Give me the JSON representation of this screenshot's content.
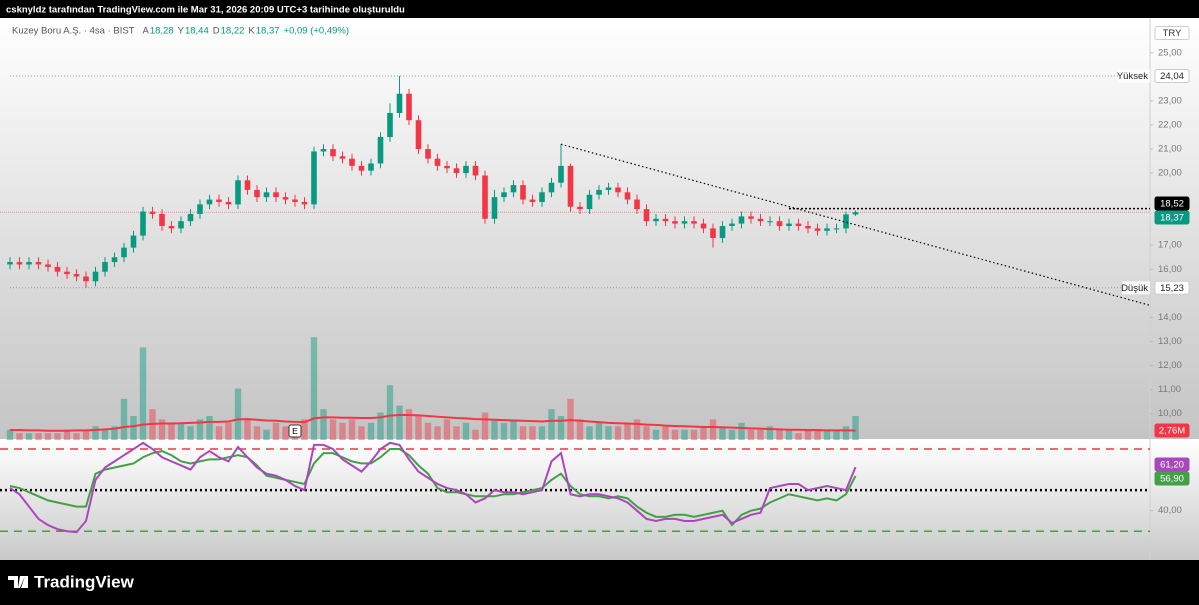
{
  "header": {
    "caption": "csknyldz tarafından TradingView.com ile Mar 31, 2026 20:09 UTC+3 tarihinde oluşturuldu"
  },
  "chart_data": {
    "type": "candlestick",
    "title": "Kuzey Boru A.Ş. · 4sa · BIST",
    "currency": "TRY",
    "ohlc_legend": [
      {
        "key": "A",
        "value": "18,28"
      },
      {
        "key": "Y",
        "value": "18,44"
      },
      {
        "key": "D",
        "value": "18,22"
      },
      {
        "key": "K",
        "value": "18,37"
      }
    ],
    "change": "+0,09 (+0,49%)",
    "colors": {
      "up": "#089981",
      "down": "#f23645"
    },
    "open": [
      16.2,
      16.3,
      16.2,
      16.3,
      16.2,
      16.1,
      15.9,
      15.8,
      15.7,
      15.5,
      15.9,
      16.3,
      16.5,
      16.9,
      17.4,
      18.4,
      18.3,
      17.8,
      17.7,
      18.0,
      18.3,
      18.7,
      18.9,
      18.8,
      18.7,
      19.7,
      19.3,
      19.0,
      19.2,
      19.0,
      18.9,
      18.8,
      18.7,
      20.9,
      21.0,
      20.7,
      20.6,
      20.3,
      20.1,
      20.4,
      21.5,
      22.5,
      23.3,
      22.2,
      21.0,
      20.6,
      20.3,
      20.2,
      20.0,
      20.3,
      19.9,
      18.1,
      19.0,
      19.2,
      19.5,
      18.9,
      18.8,
      19.2,
      19.6,
      20.3,
      18.6,
      18.5,
      19.1,
      19.3,
      19.4,
      19.2,
      18.9,
      18.5,
      18.0,
      18.1,
      18.0,
      17.9,
      18.0,
      17.9,
      17.7,
      17.3,
      17.8,
      17.9,
      18.2,
      18.1,
      18.0,
      18.0,
      17.8,
      17.9,
      17.8,
      17.7,
      17.6,
      17.7,
      17.7,
      18.28
    ],
    "high": [
      16.5,
      16.5,
      16.5,
      16.5,
      16.4,
      16.3,
      16.1,
      16.0,
      15.9,
      16.1,
      16.5,
      16.7,
      17.1,
      17.6,
      18.6,
      18.6,
      18.5,
      18.0,
      18.2,
      18.5,
      18.9,
      19.1,
      19.1,
      19.0,
      19.9,
      19.9,
      19.5,
      19.4,
      19.4,
      19.2,
      19.1,
      19.0,
      21.1,
      21.2,
      21.2,
      20.9,
      20.8,
      20.5,
      20.6,
      21.7,
      22.9,
      24.04,
      23.5,
      22.4,
      21.2,
      20.8,
      20.5,
      20.4,
      20.5,
      20.5,
      20.1,
      19.3,
      19.4,
      19.7,
      19.7,
      19.1,
      19.4,
      19.8,
      21.2,
      20.4,
      18.8,
      19.3,
      19.5,
      19.6,
      19.6,
      19.4,
      19.1,
      18.7,
      18.3,
      18.3,
      18.2,
      18.2,
      18.2,
      18.1,
      17.9,
      18.0,
      18.1,
      18.4,
      18.4,
      18.3,
      18.2,
      18.2,
      18.1,
      18.1,
      18.0,
      17.9,
      17.9,
      17.9,
      18.4,
      18.44
    ],
    "low": [
      16.0,
      16.0,
      16.0,
      16.0,
      15.9,
      15.7,
      15.6,
      15.5,
      15.23,
      15.3,
      15.7,
      16.1,
      16.3,
      16.7,
      17.2,
      18.1,
      17.6,
      17.5,
      17.5,
      17.8,
      18.1,
      18.5,
      18.6,
      18.5,
      18.5,
      19.1,
      18.8,
      18.8,
      18.8,
      18.7,
      18.6,
      18.5,
      18.5,
      20.7,
      20.5,
      20.4,
      20.1,
      19.9,
      19.9,
      20.2,
      21.3,
      22.3,
      22.0,
      20.8,
      20.4,
      20.1,
      20.0,
      19.8,
      19.8,
      19.7,
      17.9,
      17.9,
      18.8,
      19.0,
      18.7,
      18.6,
      18.6,
      19.0,
      19.4,
      18.4,
      18.3,
      18.3,
      18.9,
      19.1,
      19.0,
      18.7,
      18.3,
      17.8,
      17.8,
      17.8,
      17.7,
      17.7,
      17.7,
      17.5,
      16.9,
      17.1,
      17.6,
      17.7,
      17.9,
      17.8,
      17.8,
      17.6,
      17.6,
      17.6,
      17.5,
      17.4,
      17.4,
      17.5,
      17.5,
      18.22
    ],
    "close": [
      16.3,
      16.2,
      16.3,
      16.2,
      16.1,
      15.9,
      15.8,
      15.7,
      15.5,
      15.9,
      16.3,
      16.5,
      16.9,
      17.4,
      18.4,
      18.3,
      17.8,
      17.7,
      18.0,
      18.3,
      18.7,
      18.9,
      18.8,
      18.7,
      19.7,
      19.3,
      19.0,
      19.2,
      19.0,
      18.9,
      18.8,
      18.7,
      20.9,
      21.0,
      20.7,
      20.6,
      20.3,
      20.1,
      20.4,
      21.5,
      22.5,
      23.3,
      22.2,
      21.0,
      20.6,
      20.3,
      20.2,
      20.0,
      20.3,
      19.9,
      18.1,
      19.0,
      19.2,
      19.5,
      18.9,
      18.8,
      19.2,
      19.6,
      20.3,
      18.6,
      18.5,
      19.1,
      19.3,
      19.4,
      19.2,
      18.9,
      18.5,
      18.0,
      18.1,
      18.0,
      17.9,
      18.0,
      17.9,
      17.7,
      17.3,
      17.8,
      17.9,
      18.2,
      18.1,
      18.0,
      18.0,
      17.8,
      17.9,
      17.8,
      17.7,
      17.6,
      17.7,
      17.7,
      18.28,
      18.37
    ],
    "ylim": [
      8.9,
      26.45
    ],
    "yticks": [
      {
        "value": 25,
        "label": "25,00"
      },
      {
        "value": 23,
        "label": "23,00"
      },
      {
        "value": 22,
        "label": "22,00"
      },
      {
        "value": 21,
        "label": "21,00"
      },
      {
        "value": 20,
        "label": "20,00"
      },
      {
        "value": 17,
        "label": "17,00"
      },
      {
        "value": 16,
        "label": "16,00"
      },
      {
        "value": 14,
        "label": "14,00"
      },
      {
        "value": 13,
        "label": "13,00"
      },
      {
        "value": 12,
        "label": "12,00"
      },
      {
        "value": 11,
        "label": "11,00"
      },
      {
        "value": 10,
        "label": "10,00"
      }
    ],
    "high_marker": {
      "name": "Yüksek",
      "value": 24.04,
      "value_label": "24,04"
    },
    "low_marker": {
      "name": "Düşük",
      "value": 15.23,
      "value_label": "15,23"
    },
    "resistance": {
      "value": 18.52,
      "value_label": "18,52",
      "start": 82
    },
    "last_price": {
      "value": 18.37,
      "value_label": "18,37"
    },
    "trendline": {
      "x": [
        58,
        120
      ],
      "y": [
        21.2,
        14.5
      ]
    },
    "earnings_marker": {
      "label": "E",
      "index": 30
    },
    "volume": {
      "values": [
        3,
        2,
        2,
        2,
        2,
        2,
        3,
        2,
        3,
        4,
        3,
        4,
        12,
        7,
        27,
        9,
        6,
        5,
        5,
        4,
        6,
        7,
        4,
        5,
        15,
        6,
        4,
        3,
        5,
        4,
        3,
        6,
        30,
        9,
        6,
        5,
        6,
        4,
        5,
        8,
        16,
        10,
        9,
        7,
        5,
        4,
        6,
        4,
        5,
        3,
        8,
        6,
        5,
        6,
        4,
        4,
        4,
        9,
        7,
        12,
        6,
        4,
        5,
        4,
        4,
        5,
        6,
        4,
        3,
        4,
        3,
        3,
        3,
        4,
        6,
        4,
        3,
        5,
        3,
        3,
        4,
        3,
        3,
        2,
        3,
        3,
        3,
        3,
        4,
        7
      ],
      "ma": [
        2.9,
        2.9,
        2.8,
        2.8,
        2.7,
        2.7,
        2.7,
        2.8,
        2.8,
        2.9,
        3.1,
        3.3,
        3.8,
        4.0,
        4.5,
        4.7,
        4.8,
        4.8,
        4.9,
        5.0,
        5.1,
        5.3,
        5.3,
        5.4,
        6.0,
        6.1,
        5.9,
        5.7,
        5.6,
        5.4,
        5.3,
        5.2,
        6.3,
        6.6,
        6.6,
        6.5,
        6.5,
        6.4,
        6.4,
        6.6,
        7.1,
        7.3,
        7.3,
        7.2,
        7.0,
        6.8,
        6.6,
        6.4,
        6.3,
        6.1,
        6.0,
        5.9,
        5.8,
        5.7,
        5.6,
        5.5,
        5.4,
        5.6,
        5.6,
        5.8,
        5.6,
        5.4,
        5.2,
        5.0,
        4.9,
        4.8,
        4.7,
        4.5,
        4.4,
        4.2,
        4.1,
        4.0,
        3.9,
        3.8,
        3.8,
        3.7,
        3.6,
        3.5,
        3.4,
        3.3,
        3.2,
        3.1,
        3.0,
        3.0,
        2.9,
        2.9,
        2.8,
        2.8,
        2.8,
        2.76
      ],
      "ma_value_label": "2,76M",
      "ma_color": "#f23645",
      "ylim": [
        0,
        35
      ]
    },
    "rsi": {
      "values": [
        51,
        48,
        42,
        36,
        33,
        31,
        30,
        29.5,
        35,
        55,
        61,
        64,
        67,
        70,
        73,
        70,
        66,
        64,
        62,
        60,
        66,
        69,
        66,
        64,
        71,
        66,
        61,
        58,
        57,
        55,
        52,
        50,
        72,
        72,
        70,
        65,
        62,
        59,
        64,
        70,
        73,
        72,
        65,
        59,
        56,
        53,
        51,
        50,
        48,
        44,
        46,
        50,
        49,
        49,
        48,
        49,
        50,
        64,
        68,
        48,
        47,
        48,
        48,
        47,
        46,
        44,
        40,
        36,
        35,
        36,
        36,
        35,
        35,
        36,
        37,
        38,
        34,
        36,
        38,
        39,
        51,
        52,
        53,
        53,
        50,
        51,
        52,
        51,
        50,
        61.2
      ],
      "ma": [
        52,
        51,
        49,
        47,
        45,
        44,
        43,
        42,
        42,
        58,
        60,
        61,
        62,
        63,
        66,
        68,
        69,
        67,
        64,
        63,
        64,
        65,
        65,
        66,
        67,
        66,
        62,
        57,
        56,
        55,
        54,
        53,
        63,
        68,
        68,
        66,
        64,
        63,
        63,
        66,
        70,
        70,
        67,
        62,
        58,
        51,
        49,
        49,
        48,
        47,
        47,
        47,
        48,
        48,
        49,
        50,
        51,
        55,
        58,
        52,
        48,
        47,
        47,
        46,
        47,
        46,
        42,
        39,
        37,
        37,
        38,
        38,
        37,
        38,
        39,
        40,
        33,
        38,
        40,
        41,
        44,
        46,
        48,
        47,
        46,
        45,
        46,
        45,
        48,
        56.9
      ],
      "value_label": "61,20",
      "ma_value_label": "56,90",
      "color": "#ab47bc",
      "ma_color": "#43a047",
      "ylim": [
        16,
        74.4
      ],
      "yticks": [
        {
          "value": 40,
          "label": "40,00"
        }
      ],
      "levels": [
        70,
        50,
        30
      ],
      "level_colors": [
        "#f23645",
        "#000000",
        "#43a047"
      ],
      "level_styles": [
        "dashed",
        "dotted",
        "dashed"
      ]
    }
  },
  "footer": {
    "brand": "TradingView"
  }
}
